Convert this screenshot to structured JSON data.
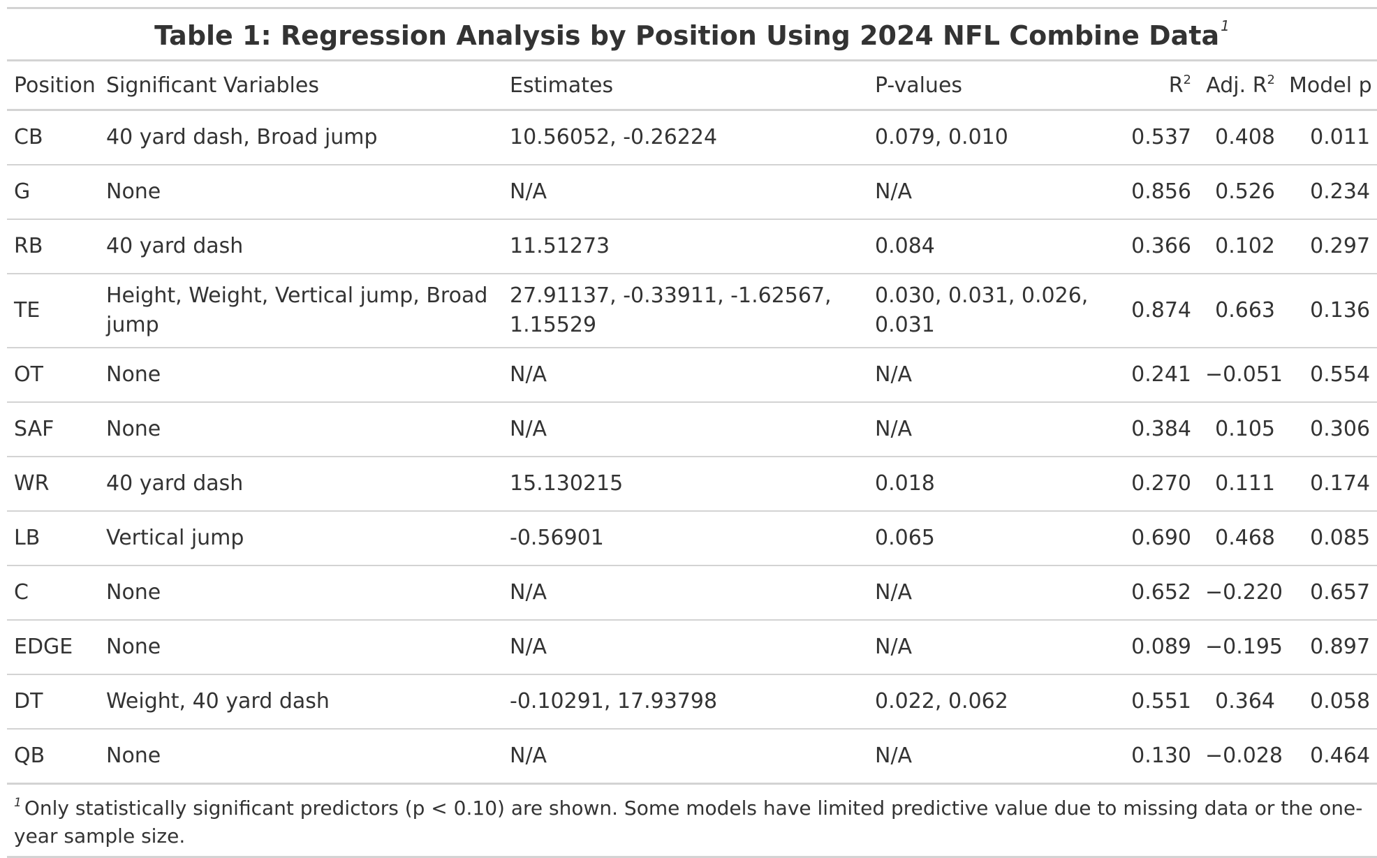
{
  "table": {
    "title": "Table 1: Regression Analysis by Position Using 2024 NFL Combine Data",
    "title_footnote_mark": "1",
    "columns": {
      "position": "Position",
      "significant_variables": "Significant Variables",
      "estimates": "Estimates",
      "p_values": "P-values",
      "r2": "R",
      "r2_sup": "2",
      "adj_r2": "Adj. R",
      "adj_r2_sup": "2",
      "model_p": "Model p"
    },
    "rows": [
      {
        "position": "CB",
        "variables": "40 yard dash, Broad jump",
        "estimates": "10.56052, -0.26224",
        "p_values": "0.079, 0.010",
        "r2": "0.537",
        "adj_r2": "0.408",
        "model_p": "0.011"
      },
      {
        "position": "G",
        "variables": "None",
        "estimates": "N/A",
        "p_values": "N/A",
        "r2": "0.856",
        "adj_r2": "0.526",
        "model_p": "0.234"
      },
      {
        "position": "RB",
        "variables": "40 yard dash",
        "estimates": "11.51273",
        "p_values": "0.084",
        "r2": "0.366",
        "adj_r2": "0.102",
        "model_p": "0.297"
      },
      {
        "position": "TE",
        "variables": "Height, Weight, Vertical jump, Broad jump",
        "estimates": "27.91137, -0.33911, -1.62567, 1.15529",
        "p_values": "0.030, 0.031, 0.026, 0.031",
        "r2": "0.874",
        "adj_r2": "0.663",
        "model_p": "0.136"
      },
      {
        "position": "OT",
        "variables": "None",
        "estimates": "N/A",
        "p_values": "N/A",
        "r2": "0.241",
        "adj_r2": "−0.051",
        "model_p": "0.554"
      },
      {
        "position": "SAF",
        "variables": "None",
        "estimates": "N/A",
        "p_values": "N/A",
        "r2": "0.384",
        "adj_r2": "0.105",
        "model_p": "0.306"
      },
      {
        "position": "WR",
        "variables": "40 yard dash",
        "estimates": "15.130215",
        "p_values": "0.018",
        "r2": "0.270",
        "adj_r2": "0.111",
        "model_p": "0.174"
      },
      {
        "position": "LB",
        "variables": "Vertical jump",
        "estimates": "-0.56901",
        "p_values": "0.065",
        "r2": "0.690",
        "adj_r2": "0.468",
        "model_p": "0.085"
      },
      {
        "position": "C",
        "variables": "None",
        "estimates": "N/A",
        "p_values": "N/A",
        "r2": "0.652",
        "adj_r2": "−0.220",
        "model_p": "0.657"
      },
      {
        "position": "EDGE",
        "variables": "None",
        "estimates": "N/A",
        "p_values": "N/A",
        "r2": "0.089",
        "adj_r2": "−0.195",
        "model_p": "0.897"
      },
      {
        "position": "DT",
        "variables": "Weight, 40 yard dash",
        "estimates": "-0.10291, 17.93798",
        "p_values": "0.022, 0.062",
        "r2": "0.551",
        "adj_r2": "0.364",
        "model_p": "0.058"
      },
      {
        "position": "QB",
        "variables": "None",
        "estimates": "N/A",
        "p_values": "N/A",
        "r2": "0.130",
        "adj_r2": "−0.028",
        "model_p": "0.464"
      }
    ],
    "footnote_mark": "1",
    "footnote": "Only statistically significant predictors (p < 0.10) are shown. Some models have limited predictive value due to missing data or the one-year sample size."
  },
  "colors": {
    "text": "#333333",
    "rule": "#d3d3d3"
  }
}
